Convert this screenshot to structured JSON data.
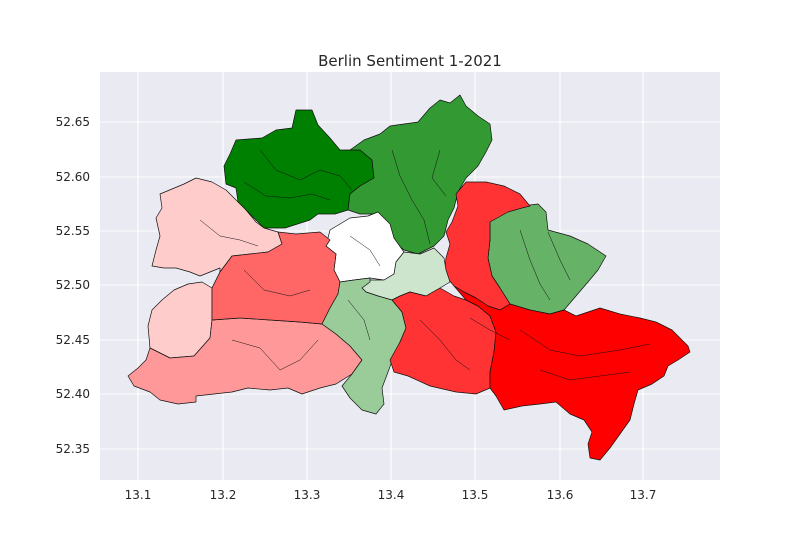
{
  "title": "Berlin Sentiment 1-2021",
  "x_ticks": [
    "13.1",
    "13.2",
    "13.3",
    "13.4",
    "13.5",
    "13.6",
    "13.7"
  ],
  "y_ticks": [
    "52.65",
    "52.60",
    "52.55",
    "52.50",
    "52.45",
    "52.40",
    "52.35"
  ],
  "colors": {
    "plot_background": "#eaeaf2",
    "grid": "#ffffff",
    "dark_green": "#008000",
    "green": "#339933",
    "mid_green": "#66b266",
    "light_green": "#99cc99",
    "pale_green": "#cce5cc",
    "neutral": "#ffffff",
    "pale_red": "#ffcccc",
    "light_red": "#ff9999",
    "mid_red": "#ff6666",
    "red": "#ff3333",
    "bright_red": "#ff0000"
  },
  "chart_data": {
    "type": "choropleth map",
    "title": "Berlin Sentiment 1-2021",
    "xlim": [
      13.06,
      13.79
    ],
    "ylim": [
      52.32,
      52.695
    ],
    "x_ticks": [
      13.1,
      13.2,
      13.3,
      13.4,
      13.5,
      13.6,
      13.7
    ],
    "y_ticks": [
      52.65,
      52.6,
      52.55,
      52.5,
      52.45,
      52.4,
      52.35
    ],
    "grid": true,
    "regions": [
      {
        "area": "north-west",
        "color": "dark_green"
      },
      {
        "area": "north",
        "color": "green"
      },
      {
        "area": "north-east",
        "color": "mid_green"
      },
      {
        "area": "centre-south",
        "color": "light_green"
      },
      {
        "area": "centre-east",
        "color": "pale_green"
      },
      {
        "area": "centre",
        "color": "neutral"
      },
      {
        "area": "west",
        "color": "pale_red"
      },
      {
        "area": "south-west",
        "color": "light_red"
      },
      {
        "area": "inner west",
        "color": "mid_red"
      },
      {
        "area": "east",
        "color": "red"
      },
      {
        "area": "south-east",
        "color": "bright_red"
      }
    ]
  }
}
